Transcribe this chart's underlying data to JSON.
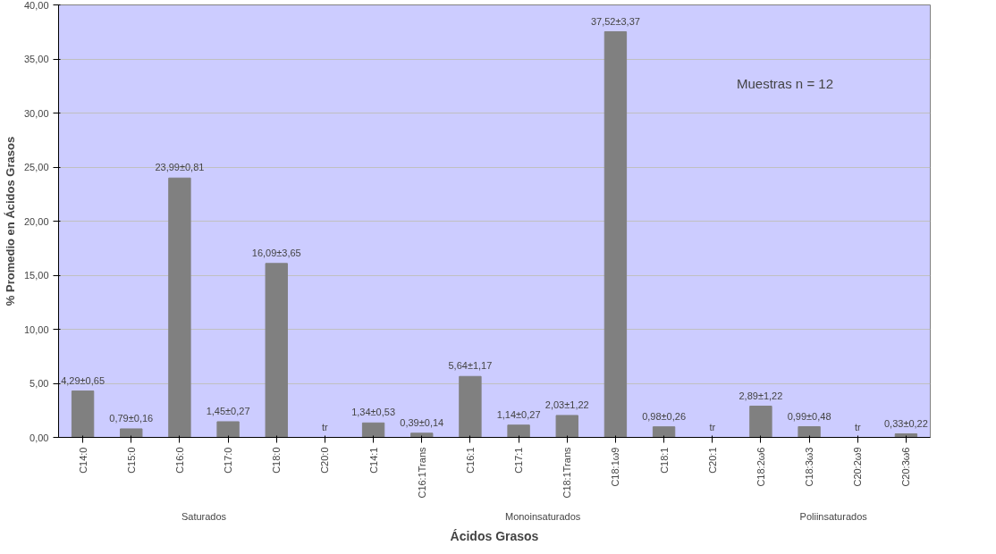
{
  "chart_data": {
    "type": "bar",
    "xlabel": "Ácidos Grasos",
    "ylabel": "% Promedio en Ácidos Grasos",
    "categories": [
      "C14:0",
      "C15:0",
      "C16:0",
      "C17:0",
      "C18:0",
      "C20:0",
      "C14:1",
      "C16:1Trans",
      "C16:1",
      "C17:1",
      "C18:1Trans",
      "C18:1ω9",
      "C18:1",
      "C20:1",
      "C18:2ω6",
      "C18:3ω3",
      "C20:2ω9",
      "C20:3ω6"
    ],
    "values": [
      4.29,
      0.79,
      23.99,
      1.45,
      16.09,
      0,
      1.34,
      0.39,
      5.64,
      1.14,
      2.03,
      37.52,
      0.98,
      0,
      2.89,
      0.99,
      0,
      0.33
    ],
    "value_labels": [
      "4,29±0,65",
      "0,79±0,16",
      "23,99±0,81",
      "1,45±0,27",
      "16,09±3,65",
      "tr",
      "1,34±0,53",
      "0,39±0,14",
      "5,64±1,17",
      "1,14±0,27",
      "2,03±1,22",
      "37,52±3,37",
      "0,98±0,26",
      "tr",
      "2,89±1,22",
      "0,99±0,48",
      "tr",
      "0,33±0,22"
    ],
    "color": "#808080",
    "ylim": [
      0,
      40
    ],
    "yticks": [
      {
        "value": 0,
        "label": "0,00"
      },
      {
        "value": 5,
        "label": "5,00"
      },
      {
        "value": 10,
        "label": "10,00"
      },
      {
        "value": 15,
        "label": "15,00"
      },
      {
        "value": 20,
        "label": "20,00"
      },
      {
        "value": 25,
        "label": "25,00"
      },
      {
        "value": 30,
        "label": "30,00"
      },
      {
        "value": 35,
        "label": "35,00"
      },
      {
        "value": 40,
        "label": "40,00"
      }
    ],
    "grid": "y",
    "annotations": [
      "Muestras n = 12",
      "Saturados",
      "Monoinsaturados",
      "Poliinsaturados"
    ]
  }
}
